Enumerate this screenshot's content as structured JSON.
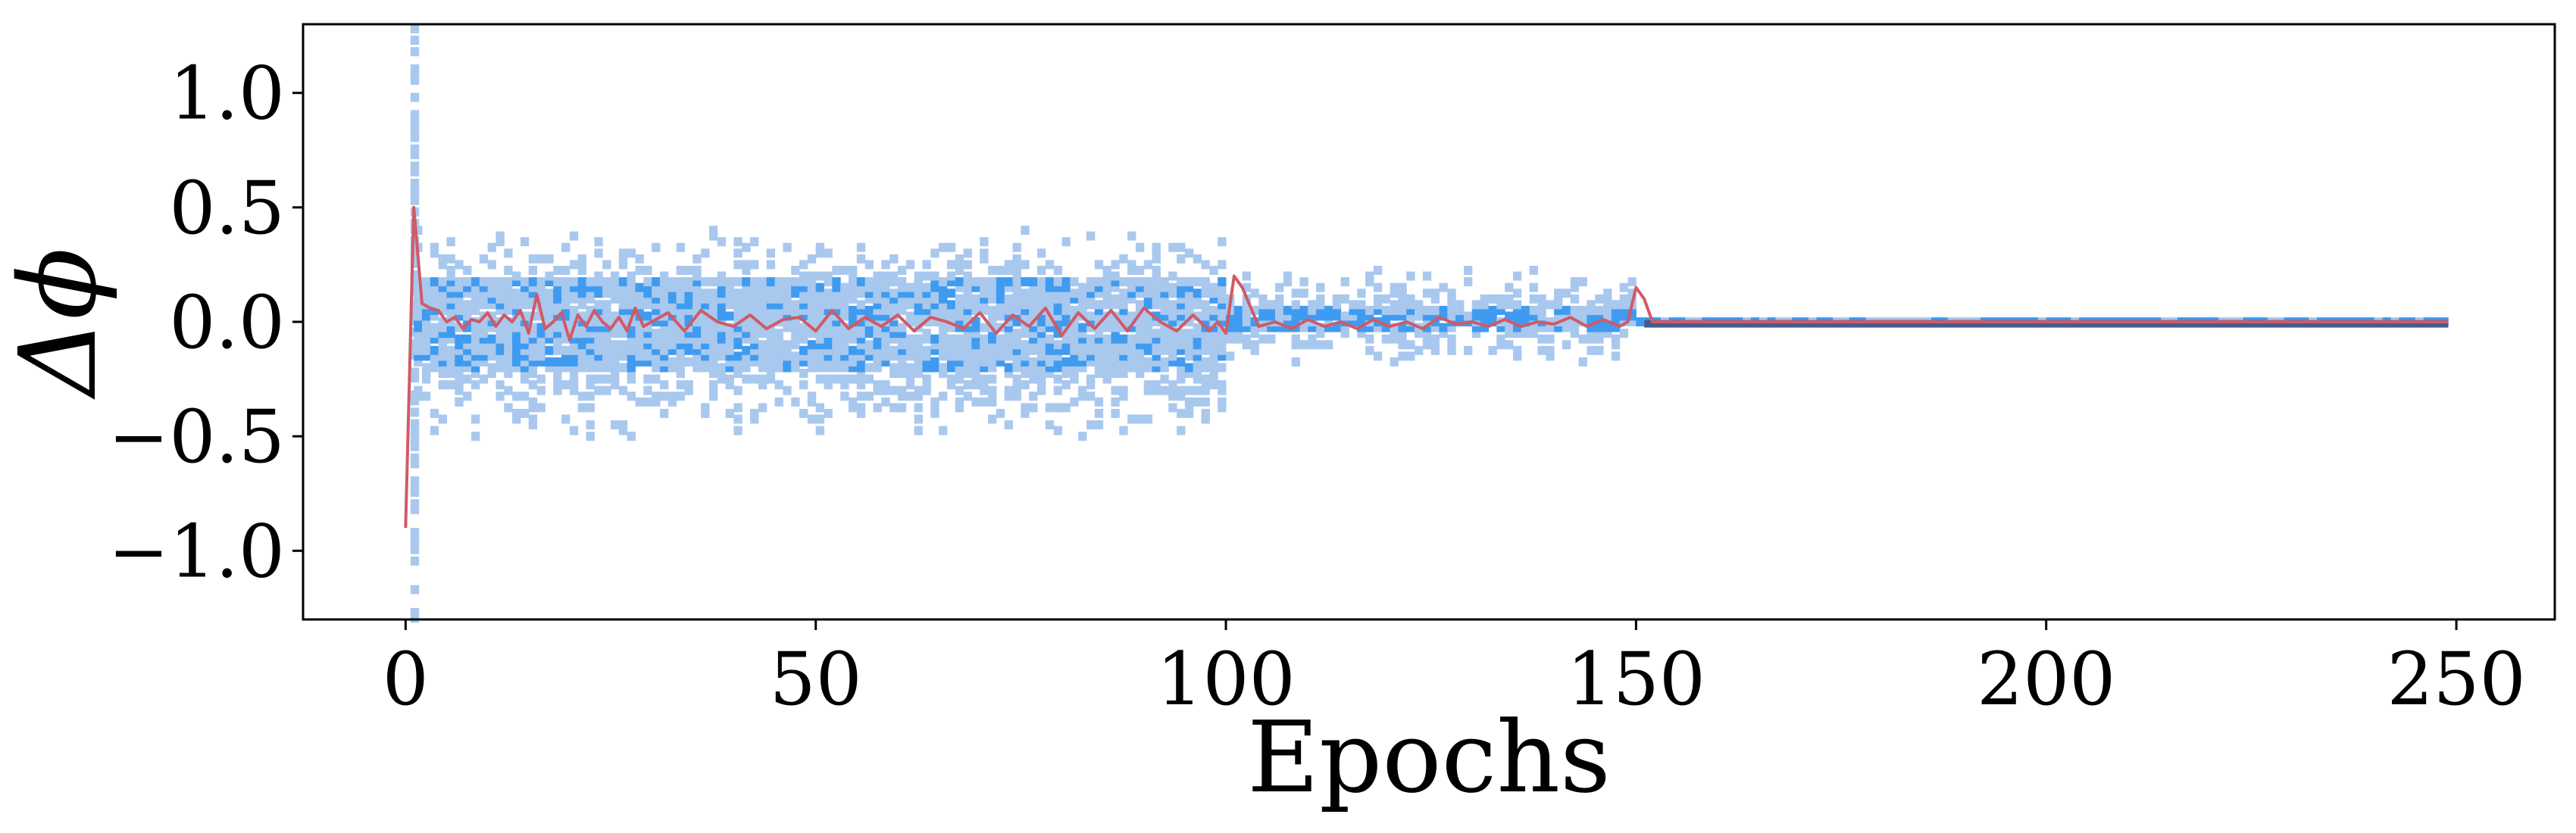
{
  "chart_data": {
    "type": "heatmap",
    "xlabel": "Epochs",
    "ylabel": "Δϕ",
    "xlim": [
      -12.5,
      262
    ],
    "ylim": [
      -1.3,
      1.3
    ],
    "xticks": [
      0,
      50,
      100,
      150,
      200,
      250
    ],
    "yticks": [
      1.0,
      0.5,
      0.0,
      -0.5,
      -1.0
    ],
    "xtick_labels": [
      "0",
      "50",
      "100",
      "150",
      "200",
      "250"
    ],
    "ytick_labels": [
      "1.0",
      "0.5",
      "0.0",
      "−0.5",
      "−1.0"
    ],
    "grid": false,
    "colors": {
      "histogram_light": "#a9c8ee",
      "histogram_dense": "#3f9bf0",
      "mean_line": "#d05a66",
      "stable_band": "#465c8c"
    },
    "series": [
      {
        "kind": "mean_line",
        "epochs": [
          0,
          1,
          2,
          3,
          4,
          5,
          6,
          7,
          8,
          9,
          10,
          11,
          12,
          13,
          14,
          15,
          16,
          17,
          18,
          19,
          20,
          21,
          22,
          23,
          24,
          25,
          26,
          27,
          28,
          29,
          30,
          32,
          34,
          36,
          38,
          40,
          42,
          44,
          46,
          48,
          50,
          52,
          54,
          56,
          58,
          60,
          62,
          64,
          66,
          68,
          70,
          72,
          74,
          76,
          78,
          80,
          82,
          84,
          86,
          88,
          90,
          92,
          94,
          96,
          98,
          99,
          100,
          101,
          102,
          104,
          106,
          108,
          110,
          112,
          114,
          116,
          118,
          120,
          122,
          124,
          126,
          128,
          130,
          132,
          134,
          136,
          138,
          140,
          142,
          144,
          146,
          148,
          149,
          150,
          151,
          152,
          160,
          180,
          200,
          220,
          249
        ],
        "values": [
          -0.9,
          0.5,
          0.08,
          0.06,
          0.05,
          0.0,
          0.02,
          -0.03,
          0.01,
          0.0,
          0.04,
          -0.02,
          0.03,
          0.0,
          0.05,
          -0.05,
          0.12,
          -0.03,
          0.0,
          0.04,
          -0.08,
          0.03,
          -0.02,
          0.05,
          0.0,
          -0.03,
          0.02,
          -0.04,
          0.06,
          -0.02,
          0.0,
          0.04,
          -0.04,
          0.05,
          0.0,
          -0.02,
          0.03,
          -0.03,
          0.01,
          0.02,
          -0.04,
          0.05,
          -0.03,
          0.02,
          -0.02,
          0.03,
          -0.04,
          0.02,
          0.0,
          -0.03,
          0.04,
          -0.05,
          0.03,
          -0.02,
          0.06,
          -0.06,
          0.04,
          -0.03,
          0.05,
          -0.04,
          0.06,
          0.0,
          -0.04,
          0.03,
          -0.04,
          0.0,
          -0.05,
          0.2,
          0.15,
          -0.02,
          0.0,
          -0.03,
          0.01,
          -0.02,
          0.0,
          -0.03,
          0.01,
          -0.02,
          0.0,
          -0.03,
          0.02,
          -0.01,
          0.0,
          -0.02,
          0.01,
          -0.02,
          0.0,
          -0.01,
          0.02,
          -0.02,
          0.01,
          -0.02,
          0.0,
          0.15,
          0.1,
          0.0,
          0.0,
          0.0,
          0.0,
          0.0,
          0.0
        ]
      },
      {
        "kind": "histogram_spread",
        "segments": [
          {
            "epochs": [
              0,
              1
            ],
            "range": [
              -1.3,
              1.3
            ]
          },
          {
            "epochs": [
              1,
              100
            ],
            "range": [
              -0.55,
              0.45
            ],
            "core": [
              -0.2,
              0.2
            ]
          },
          {
            "epochs": [
              100,
              150
            ],
            "range": [
              -0.2,
              0.25
            ],
            "core": [
              -0.05,
              0.07
            ]
          },
          {
            "epochs": [
              150,
              249
            ],
            "range": [
              -0.02,
              0.02
            ],
            "core": [
              -0.01,
              0.01
            ]
          }
        ]
      }
    ]
  }
}
